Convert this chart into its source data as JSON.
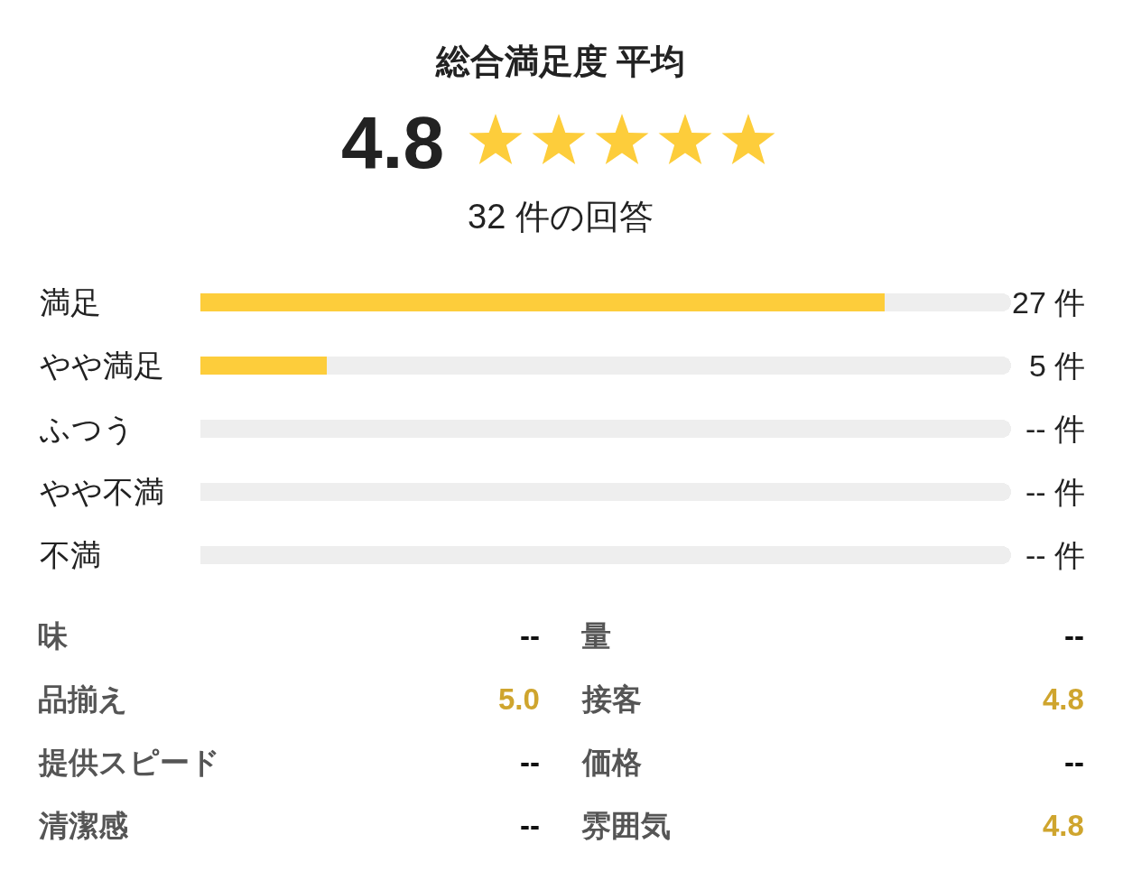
{
  "chart_data": [
    {
      "type": "bar",
      "orientation": "horizontal",
      "stacked": true,
      "title": "総合満足度 平均",
      "annotations": [
        "4.8",
        "32 件の回答"
      ],
      "categories": [
        "満足",
        "やや満足",
        "ふつう",
        "やや不満",
        "不満"
      ],
      "series": [
        {
          "color": "#fdcd3b",
          "values": [
            27,
            5,
            null,
            null,
            null
          ],
          "value_labels": [
            "27 件",
            "5 件",
            "-- 件",
            "-- 件",
            "-- 件"
          ]
        },
        {
          "color": "#eeeeee",
          "values": [
            5,
            27,
            32,
            32,
            32
          ]
        }
      ],
      "xlim": [
        0,
        32
      ]
    },
    {
      "type": "other",
      "annotations": [
        "味",
        "--",
        "量",
        "--",
        "品揃え",
        "5.0",
        "接客",
        "4.8",
        "提供スピード",
        "--",
        "価格",
        "--",
        "清潔感",
        "--",
        "雰囲気",
        "4.8"
      ],
      "color": "#cfa52e"
    }
  ]
}
